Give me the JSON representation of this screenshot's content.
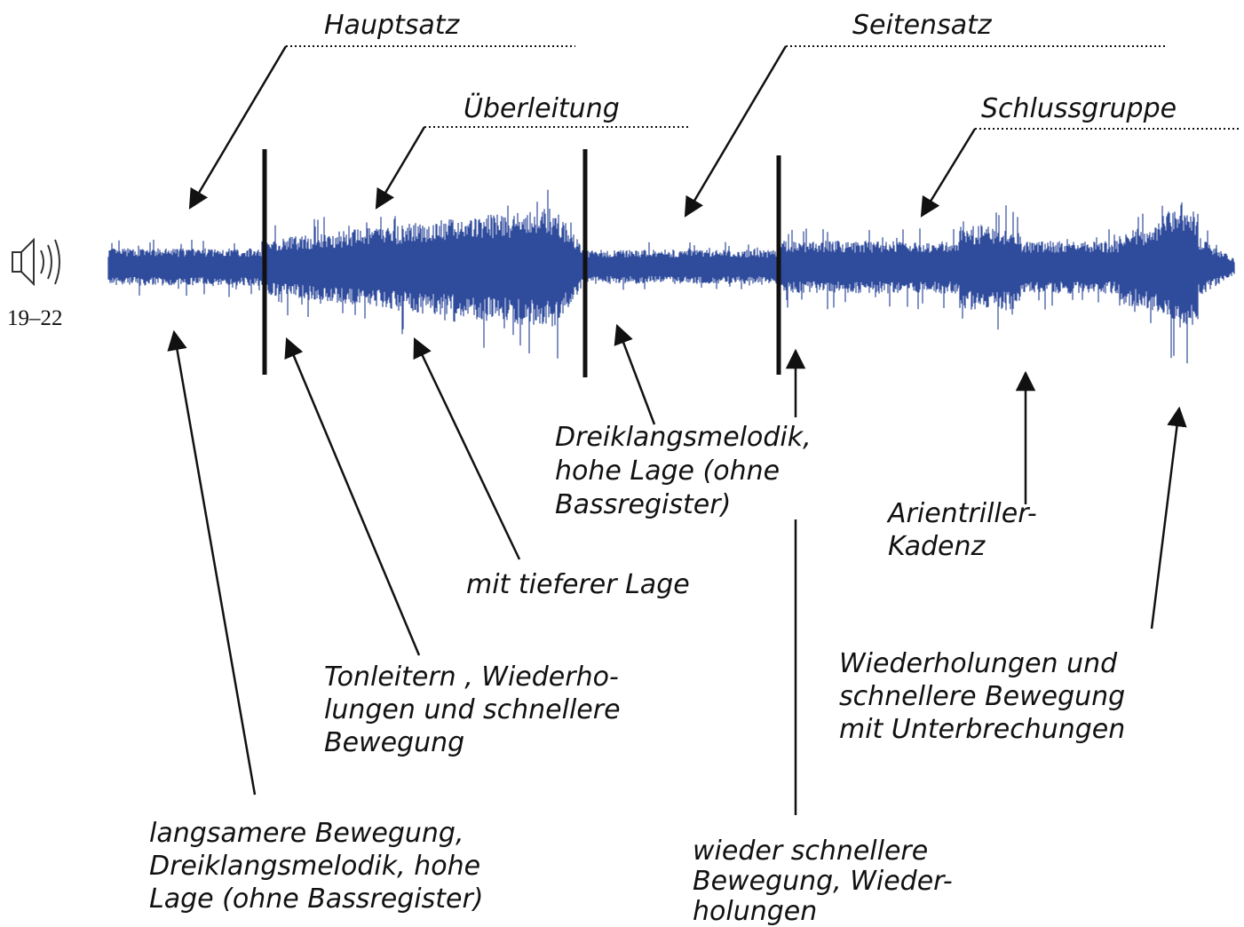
{
  "audio": {
    "label": "19–22"
  },
  "sections": [
    {
      "label": "Hauptsatz"
    },
    {
      "label": "Überleitung"
    },
    {
      "label": "Seitensatz"
    },
    {
      "label": "Schlussgruppe"
    }
  ],
  "annotations": [
    {
      "lines": [
        "Dreiklangsmelodik,",
        "hohe Lage (ohne",
        "Bassregister)"
      ]
    },
    {
      "lines": [
        "Arientriller-",
        "Kadenz"
      ]
    },
    {
      "lines": [
        "mit tieferer Lage"
      ]
    },
    {
      "lines": [
        "Tonleitern , Wiederho-",
        "lungen und schnellere",
        "Bewegung"
      ]
    },
    {
      "lines": [
        "Wiederholungen und",
        "schnellere Bewegung",
        "mit Unterbrechungen"
      ]
    },
    {
      "lines": [
        "langsamere Bewegung,",
        "Dreiklangsmelodik, hohe",
        "Lage (ohne Bassregister)"
      ]
    },
    {
      "lines": [
        "wieder schnellere",
        "Bewegung, Wieder-",
        "holungen"
      ]
    }
  ]
}
